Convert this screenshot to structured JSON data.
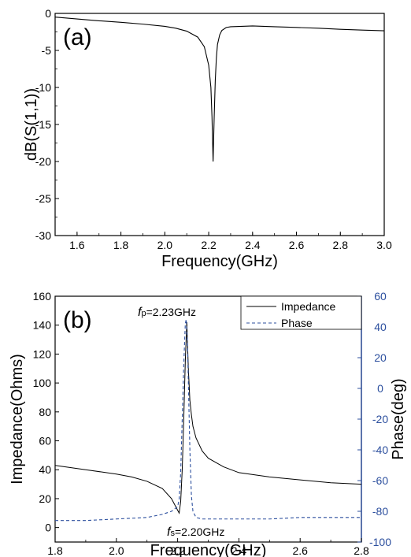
{
  "chart_data": [
    {
      "type": "line",
      "panel_label": "(a)",
      "xlabel": "Frequency(GHz)",
      "ylabel": "dB(S(1,1))",
      "xlim": [
        1.5,
        3.0
      ],
      "ylim": [
        -30,
        0
      ],
      "xticks": [
        "1.6",
        "1.8",
        "2.0",
        "2.2",
        "2.4",
        "2.6",
        "2.8",
        "3.0"
      ],
      "yticks": [
        "0",
        "-5",
        "-10",
        "-15",
        "-20",
        "-25",
        "-30"
      ],
      "grid": false,
      "colors": {
        "line": "#000000"
      },
      "series": [
        {
          "x": [
            1.5,
            1.6,
            1.7,
            1.8,
            1.9,
            2.0,
            2.05,
            2.1,
            2.15,
            2.18,
            2.2,
            2.21,
            2.215,
            2.22,
            2.225,
            2.23,
            2.235,
            2.24,
            2.25,
            2.26,
            2.28,
            2.3,
            2.4,
            2.5,
            2.6,
            2.7,
            2.8,
            2.9,
            3.0
          ],
          "y": [
            -0.5,
            -0.75,
            -1.0,
            -1.2,
            -1.45,
            -1.75,
            -2.0,
            -2.4,
            -3.2,
            -4.5,
            -7.0,
            -10.0,
            -14.0,
            -20.0,
            -14.0,
            -9.0,
            -6.0,
            -4.2,
            -2.9,
            -2.3,
            -1.9,
            -1.8,
            -1.7,
            -1.8,
            -1.9,
            -2.0,
            -2.15,
            -2.25,
            -2.35
          ]
        }
      ]
    },
    {
      "type": "line",
      "panel_label": "(b)",
      "xlabel": "Frequency(GHz)",
      "ylabel": "Impedance(Ohms)",
      "ylabel_right": "Phase(deg)",
      "xlim": [
        1.8,
        2.8
      ],
      "ylim": [
        -10,
        160
      ],
      "ylim_right": [
        -100,
        60
      ],
      "xticks": [
        "1.8",
        "2.0",
        "2.2",
        "2.4",
        "2.6",
        "2.8"
      ],
      "yticks": [
        "0",
        "20",
        "40",
        "60",
        "80",
        "100",
        "120",
        "140",
        "160"
      ],
      "yticks_right": [
        "60",
        "40",
        "20",
        "0",
        "-20",
        "-40",
        "-60",
        "-80",
        "-100"
      ],
      "legend_position": "top-right",
      "grid": false,
      "annotations": {
        "fp_italic": "f",
        "fp_sub": "p",
        "fp_value": "=2.23GHz",
        "fs_italic": "f",
        "fs_sub": "s",
        "fs_value": "=2.20GHz"
      },
      "colors": {
        "impedance": "#000000",
        "phase": "#2c4f9e"
      },
      "series": [
        {
          "name": "Impedance",
          "axis": "left",
          "x": [
            1.8,
            1.9,
            2.0,
            2.05,
            2.1,
            2.15,
            2.18,
            2.2,
            2.205,
            2.21,
            2.215,
            2.22,
            2.225,
            2.23,
            2.235,
            2.24,
            2.245,
            2.25,
            2.26,
            2.28,
            2.3,
            2.35,
            2.4,
            2.5,
            2.6,
            2.7,
            2.8
          ],
          "y": [
            43,
            40,
            37,
            35,
            32,
            27,
            20,
            12,
            10,
            18,
            40,
            75,
            115,
            142,
            110,
            88,
            78,
            70,
            62,
            53,
            48,
            42,
            38,
            35,
            33,
            31,
            30
          ]
        },
        {
          "name": "Phase",
          "axis": "right",
          "x": [
            1.8,
            1.9,
            2.0,
            2.1,
            2.15,
            2.18,
            2.2,
            2.205,
            2.21,
            2.215,
            2.22,
            2.225,
            2.228,
            2.232,
            2.235,
            2.24,
            2.245,
            2.25,
            2.26,
            2.28,
            2.3,
            2.4,
            2.5,
            2.6,
            2.7,
            2.8
          ],
          "y": [
            -86,
            -86,
            -85,
            -84,
            -82,
            -80,
            -77,
            -72,
            -55,
            -20,
            15,
            42,
            45,
            30,
            5,
            -40,
            -70,
            -80,
            -84,
            -85,
            -85,
            -85,
            -85,
            -84,
            -84,
            -84
          ]
        }
      ]
    }
  ]
}
